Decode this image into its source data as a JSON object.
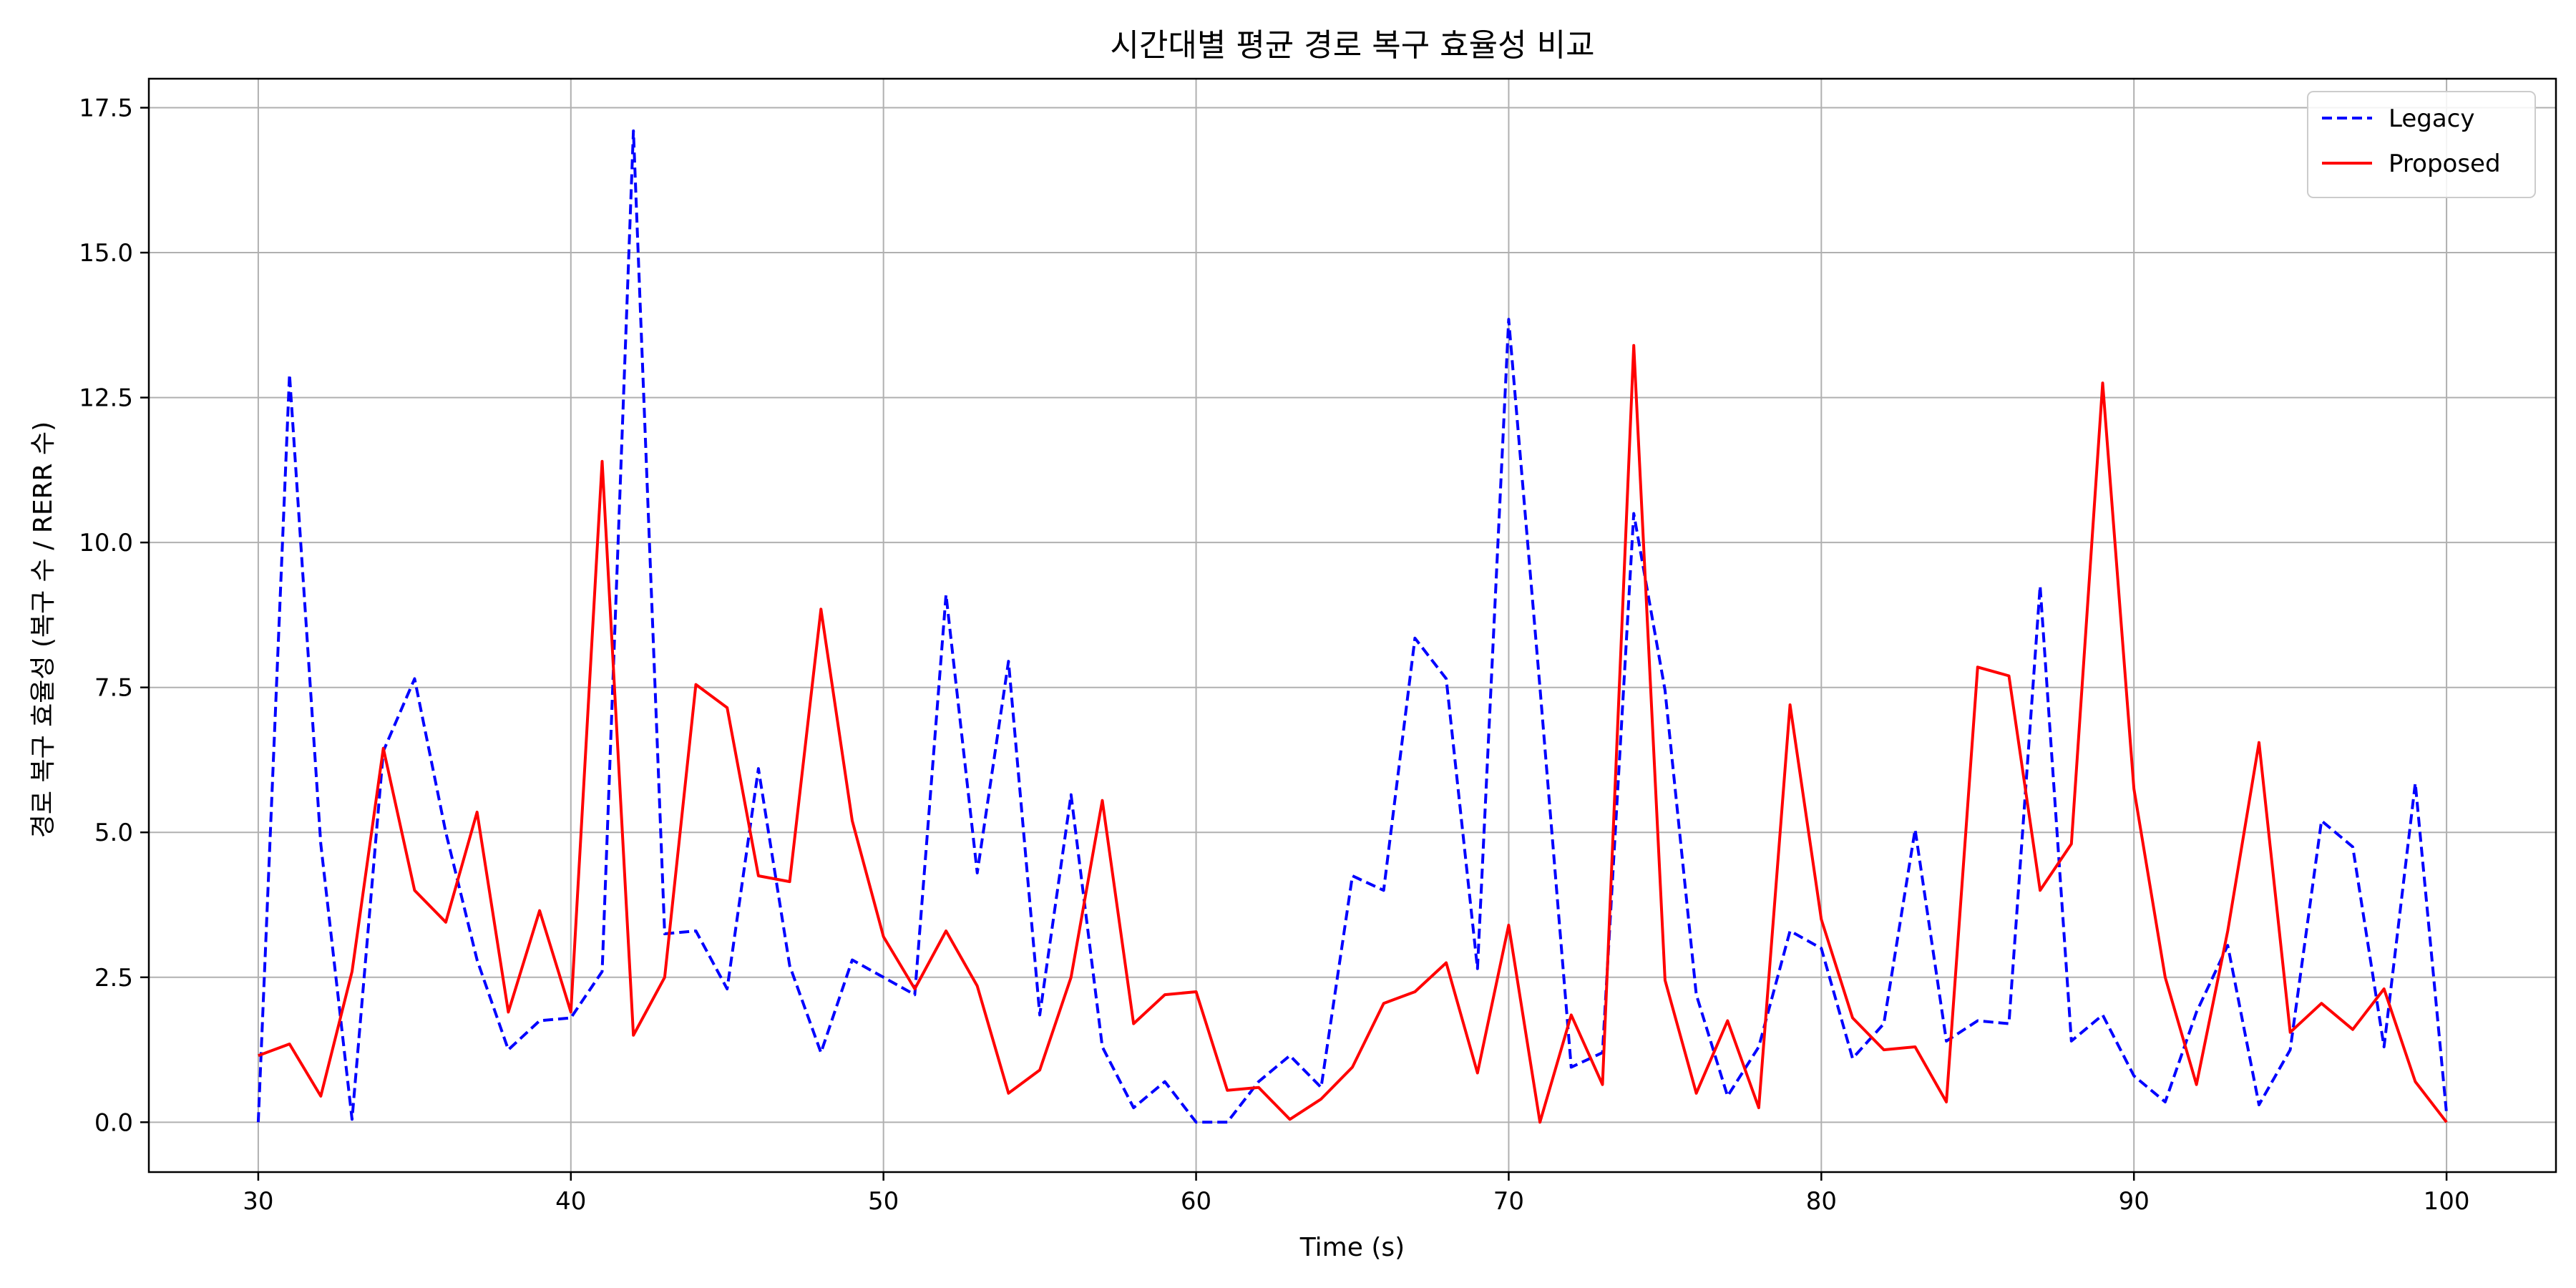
{
  "chart_data": {
    "type": "line",
    "title": "시간대별 평균 경로 복구 효율성 비교",
    "xlabel": "Time (s)",
    "ylabel": "경로 복구 효율성 (복구 수 / RERR 수)",
    "xlim": [
      26.5,
      103.5
    ],
    "ylim": [
      -0.86,
      18.0
    ],
    "xticks": [
      30,
      40,
      50,
      60,
      70,
      80,
      90,
      100
    ],
    "yticks": [
      0.0,
      2.5,
      5.0,
      7.5,
      10.0,
      12.5,
      15.0,
      17.5
    ],
    "xtick_labels": [
      "30",
      "40",
      "50",
      "60",
      "70",
      "80",
      "90",
      "100"
    ],
    "ytick_labels": [
      "0.0",
      "2.5",
      "5.0",
      "7.5",
      "10.0",
      "12.5",
      "15.0",
      "17.5"
    ],
    "grid": true,
    "legend_position": "top-right",
    "x": [
      30,
      31,
      32,
      33,
      34,
      35,
      36,
      37,
      38,
      39,
      40,
      41,
      42,
      43,
      44,
      45,
      46,
      47,
      48,
      49,
      50,
      51,
      52,
      53,
      54,
      55,
      56,
      57,
      58,
      59,
      60,
      61,
      62,
      63,
      64,
      65,
      66,
      67,
      68,
      69,
      70,
      71,
      72,
      73,
      74,
      75,
      76,
      77,
      78,
      79,
      80,
      81,
      82,
      83,
      84,
      85,
      86,
      87,
      88,
      89,
      90,
      91,
      92,
      93,
      94,
      95,
      96,
      97,
      98,
      99,
      100
    ],
    "series": [
      {
        "name": "Legacy",
        "color": "#0000ff",
        "style": "dashed",
        "values": [
          0.0,
          12.9,
          4.8,
          0.05,
          6.4,
          7.65,
          5.0,
          2.8,
          1.25,
          1.75,
          1.8,
          2.6,
          17.1,
          3.25,
          3.3,
          2.3,
          6.1,
          2.7,
          1.2,
          2.8,
          2.5,
          2.2,
          9.1,
          4.3,
          7.95,
          1.85,
          5.65,
          1.3,
          0.25,
          0.7,
          0.0,
          0.0,
          0.7,
          1.15,
          0.6,
          4.25,
          4.0,
          8.35,
          7.65,
          2.65,
          13.85,
          7.5,
          0.95,
          1.2,
          10.5,
          7.45,
          2.2,
          0.45,
          1.3,
          3.3,
          3.0,
          1.1,
          1.7,
          5.05,
          1.4,
          1.75,
          1.7,
          9.25,
          1.4,
          1.85,
          0.8,
          0.35,
          1.9,
          3.05,
          0.3,
          1.25,
          5.2,
          4.75,
          1.3,
          5.85,
          0.15
        ]
      },
      {
        "name": "Proposed",
        "color": "#ff0000",
        "style": "solid",
        "values": [
          1.15,
          1.35,
          0.45,
          2.6,
          6.45,
          4.0,
          3.45,
          5.35,
          1.9,
          3.65,
          1.9,
          11.4,
          1.5,
          2.5,
          7.55,
          7.15,
          4.25,
          4.15,
          8.85,
          5.2,
          3.2,
          2.3,
          3.3,
          2.35,
          0.5,
          0.9,
          2.5,
          5.55,
          1.7,
          2.2,
          2.25,
          0.55,
          0.6,
          0.05,
          0.4,
          0.95,
          2.05,
          2.25,
          2.75,
          0.85,
          3.4,
          0.0,
          1.85,
          0.65,
          13.4,
          2.45,
          0.5,
          1.75,
          0.25,
          7.2,
          3.5,
          1.8,
          1.25,
          1.3,
          0.35,
          7.85,
          7.7,
          4.0,
          4.8,
          12.75,
          5.75,
          2.5,
          0.65,
          3.3,
          6.55,
          1.55,
          2.05,
          1.6,
          2.3,
          0.7,
          0.0
        ]
      }
    ]
  }
}
